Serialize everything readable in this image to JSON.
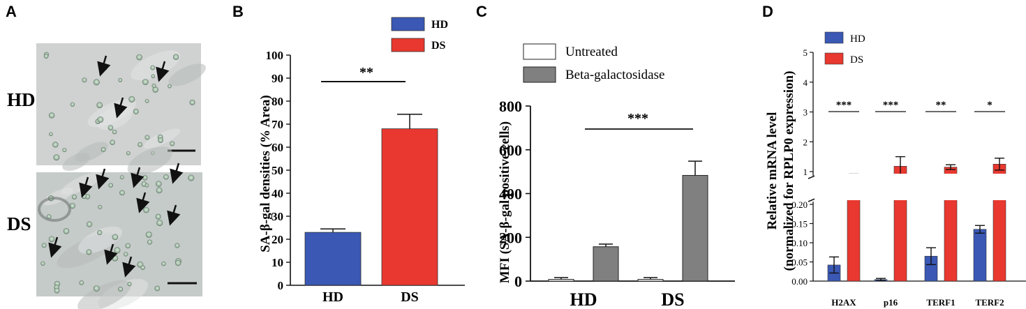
{
  "panels": {
    "a": {
      "letter": "A",
      "row_labels": [
        "HD",
        "DS"
      ]
    },
    "b": {
      "letter": "B"
    },
    "c": {
      "letter": "C"
    },
    "d": {
      "letter": "D"
    }
  },
  "colors": {
    "HD": "#3a58b4",
    "DS": "#e8382f",
    "Untreated": "#ffffff",
    "Beta": "#808080"
  },
  "chart_data": [
    {
      "panel": "B",
      "type": "bar",
      "categories": [
        "HD",
        "DS"
      ],
      "series": [
        {
          "name": "SA-β-gal densities",
          "values": [
            23,
            68
          ],
          "errors": [
            1.5,
            6.3
          ]
        }
      ],
      "legend": [
        "HD",
        "DS"
      ],
      "ylabel": "SA-β-gal densities (% Area)",
      "ylim": [
        0,
        100
      ],
      "yticks": [
        "0",
        "10",
        "20",
        "30",
        "40",
        "50",
        "60",
        "70",
        "80",
        "90",
        "100"
      ],
      "significance": "**"
    },
    {
      "panel": "C",
      "type": "bar",
      "categories": [
        "HD",
        "DS"
      ],
      "series": [
        {
          "name": "Untreated",
          "values": [
            8,
            8
          ],
          "errors": [
            8,
            8
          ]
        },
        {
          "name": "Beta-galactosidase",
          "values": [
            157,
            483
          ],
          "errors": [
            12,
            65
          ]
        }
      ],
      "legend": [
        "Untreated",
        "Beta-galactosidase"
      ],
      "ylabel": "MFI (SA-β-gal positive cells)",
      "ylim": [
        0,
        800
      ],
      "yticks": [
        "0",
        "200",
        "400",
        "600",
        "800"
      ],
      "significance": "***"
    },
    {
      "panel": "D",
      "type": "bar",
      "categories": [
        "H2AX",
        "p16",
        "TERF1",
        "TERF2"
      ],
      "series": [
        {
          "name": "HD",
          "values": [
            0.042,
            0.004,
            0.065,
            0.135
          ],
          "errors": [
            0.021,
            0.003,
            0.022,
            0.01
          ]
        },
        {
          "name": "DS",
          "values": [
            0.87,
            1.18,
            1.15,
            1.25
          ],
          "errors": [
            0.07,
            0.32,
            0.08,
            0.2
          ]
        }
      ],
      "legend": [
        "HD",
        "DS"
      ],
      "ylabel": "Relative mRNA level",
      "ylabel2": "(normalized for RPLP0 expression)",
      "axis_break": true,
      "ylim_lower": [
        0,
        0.2
      ],
      "ylim_upper": [
        1,
        5
      ],
      "yticks_lower": [
        "0.00",
        "0.05",
        "0.10",
        "0.15",
        "0.20"
      ],
      "yticks_upper": [
        "1",
        "2",
        "3",
        "4",
        "5"
      ],
      "significance": [
        "***",
        "***",
        "**",
        "*"
      ]
    }
  ]
}
